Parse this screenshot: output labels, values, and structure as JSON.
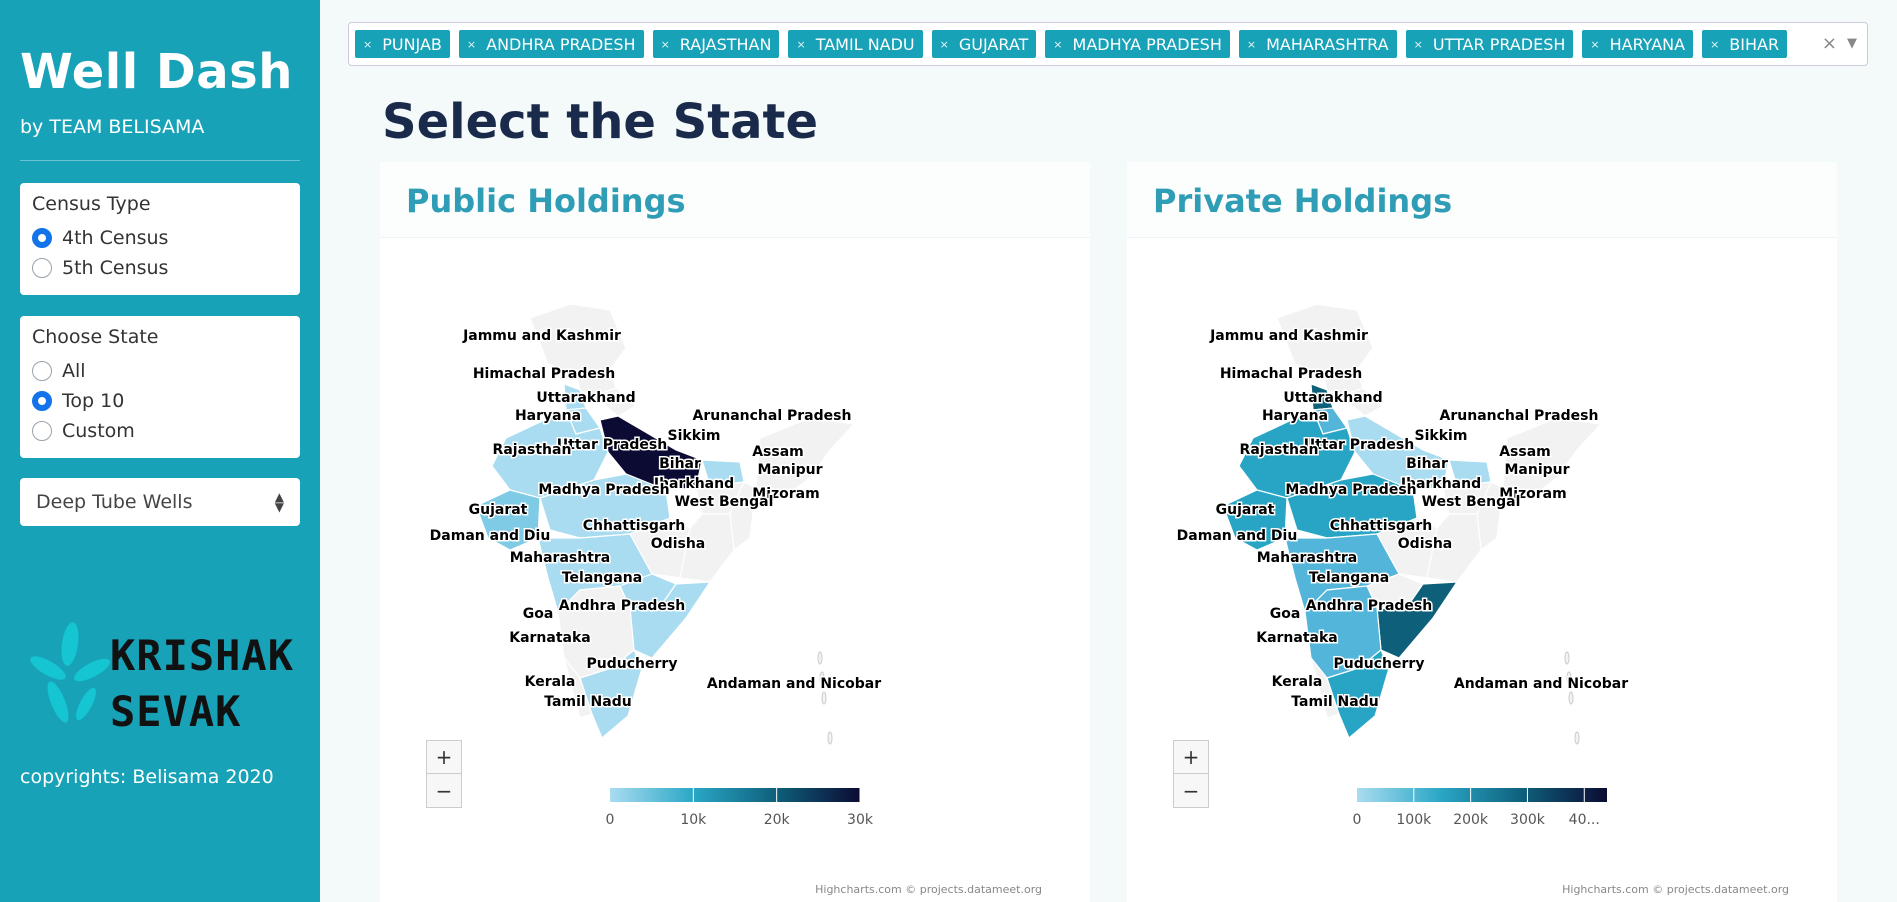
{
  "sidebar": {
    "title": "Well Dash",
    "subtitle": "by TEAM BELISAMA",
    "census": {
      "label": "Census Type",
      "options": [
        "4th Census",
        "5th Census"
      ],
      "selected": 0
    },
    "state_choice": {
      "label": "Choose State",
      "options": [
        "All",
        "Top 10",
        "Custom"
      ],
      "selected": 1
    },
    "well_type": "Deep Tube Wells",
    "logo_lines": [
      "KRISHAK",
      "SEVAK"
    ],
    "copyright": "copyrights: Belisama 2020",
    "colors": {
      "accent": "#17a2b8",
      "radio": "#1273eb"
    }
  },
  "tags": [
    "PUNJAB",
    "ANDHRA PRADESH",
    "RAJASTHAN",
    "TAMIL NADU",
    "GUJARAT",
    "MADHYA PRADESH",
    "MAHARASHTRA",
    "UTTAR PRADESH",
    "HARYANA",
    "BIHAR"
  ],
  "main": {
    "title": "Select the State"
  },
  "zoom": {
    "in": "+",
    "out": "−"
  },
  "credit": "Highcharts.com © projects.datameet.org",
  "maps": [
    {
      "title": "Public Holdings",
      "legend_ticks": [
        "0",
        "10k",
        "20k",
        "30k"
      ],
      "labels": [
        "Jammu and Kashmir",
        "Himachal Pradesh",
        "Uttarakhand",
        "Haryana",
        "Arunanchal Pradesh",
        "Sikkim",
        "Uttar Pradesh",
        "Rajasthan",
        "Assam",
        "Bihar",
        "Manipur",
        "Jharkhand",
        "Madhya Pradesh",
        "Mizoram",
        "West Bengal",
        "Gujarat",
        "Chhattisgarh",
        "Daman and Diu",
        "Odisha",
        "Maharashtra",
        "Telangana",
        "Andhra Pradesh",
        "Goa",
        "Karnataka",
        "Puducherry",
        "Andaman and Nicobar",
        "Kerala",
        "Tamil Nadu"
      ]
    },
    {
      "title": "Private Holdings",
      "legend_ticks": [
        "0",
        "100k",
        "200k",
        "300k",
        "40..."
      ],
      "labels": [
        "Jammu and Kashmir",
        "Himachal Pradesh",
        "Uttarakhand",
        "Haryana",
        "Arunanchal Pradesh",
        "Sikkim",
        "Uttar Pradesh",
        "Rajasthan",
        "Assam",
        "Bihar",
        "Manipur",
        "Jharkhand",
        "Madhya Pradesh",
        "Mizoram",
        "West Bengal",
        "Gujarat",
        "Chhattisgarh",
        "Daman and Diu",
        "Odisha",
        "Maharashtra",
        "Telangana",
        "Andhra Pradesh",
        "Goa",
        "Karnataka",
        "Puducherry",
        "Andaman and Nicobar",
        "Kerala",
        "Tamil Nadu"
      ]
    }
  ]
}
